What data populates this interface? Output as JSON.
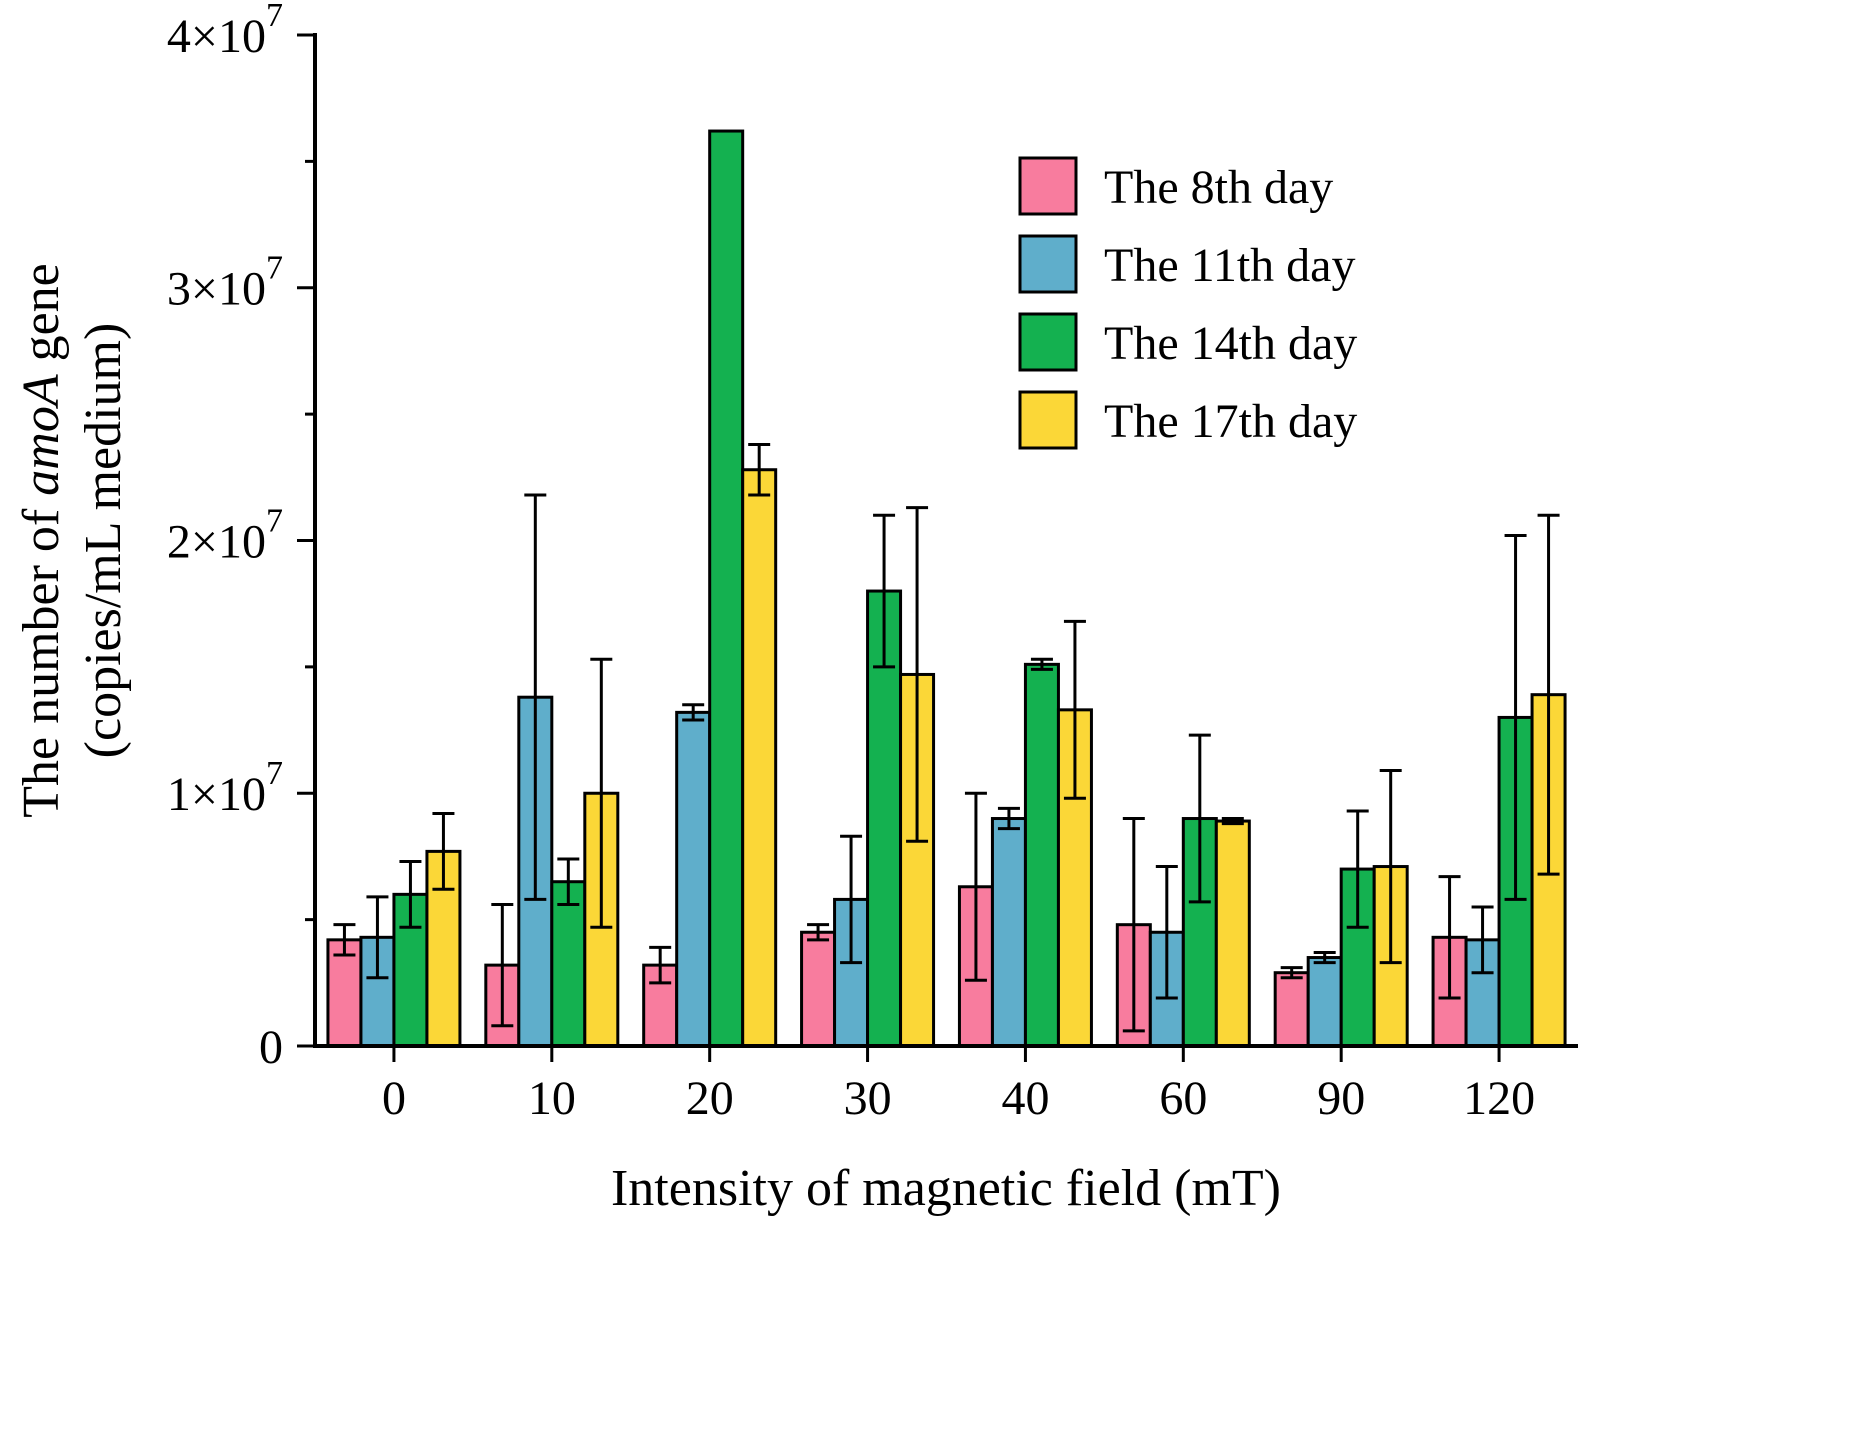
{
  "page": {
    "background": "#FFFFFF"
  },
  "chart_data": {
    "type": "bar",
    "title": "",
    "xlabel": "Intensity of magnetic field (mT)",
    "ylabel_lines": [
      [
        {
          "t": "The number of "
        },
        {
          "t": "amoA",
          "italic": true
        },
        {
          "t": " gene"
        }
      ],
      [
        {
          "t": "(copies/mL medium)"
        }
      ]
    ],
    "value_unit": "×10^7 copies/mL medium",
    "categories": [
      "0",
      "10",
      "20",
      "30",
      "40",
      "60",
      "90",
      "120"
    ],
    "ylim": [
      0,
      4
    ],
    "y_minor_step": 0.5,
    "y_ticks": [
      {
        "v": 0,
        "label": "0"
      },
      {
        "v": 1,
        "label": "1×10",
        "exp": "7"
      },
      {
        "v": 2,
        "label": "2×10",
        "exp": "7"
      },
      {
        "v": 3,
        "label": "3×10",
        "exp": "7"
      },
      {
        "v": 4,
        "label": "4×10",
        "exp": "7"
      }
    ],
    "grid": false,
    "legend_position": "top-right",
    "series": [
      {
        "name": "The 8th day",
        "color": "#F87C9E",
        "values": [
          0.42,
          0.32,
          0.32,
          0.45,
          0.63,
          0.48,
          0.29,
          0.43
        ],
        "errors": [
          0.06,
          0.24,
          0.07,
          0.03,
          0.37,
          0.42,
          0.02,
          0.24
        ]
      },
      {
        "name": "The 11th day",
        "color": "#5FAECB",
        "values": [
          0.43,
          1.38,
          1.32,
          0.58,
          0.9,
          0.45,
          0.35,
          0.42
        ],
        "errors": [
          0.16,
          0.8,
          0.03,
          0.25,
          0.04,
          0.26,
          0.02,
          0.13
        ]
      },
      {
        "name": "The 14th day",
        "color": "#14B150",
        "values": [
          0.6,
          0.65,
          3.62,
          1.8,
          1.51,
          0.9,
          0.7,
          1.3
        ],
        "errors": [
          0.13,
          0.09,
          0.0,
          0.3,
          0.02,
          0.33,
          0.23,
          0.72
        ]
      },
      {
        "name": "The 17th day",
        "color": "#FBD737",
        "values": [
          0.77,
          1.0,
          2.28,
          1.47,
          1.33,
          0.89,
          0.71,
          1.39
        ],
        "errors": [
          0.15,
          0.53,
          0.1,
          0.66,
          0.35,
          0.01,
          0.38,
          0.71
        ]
      }
    ]
  }
}
